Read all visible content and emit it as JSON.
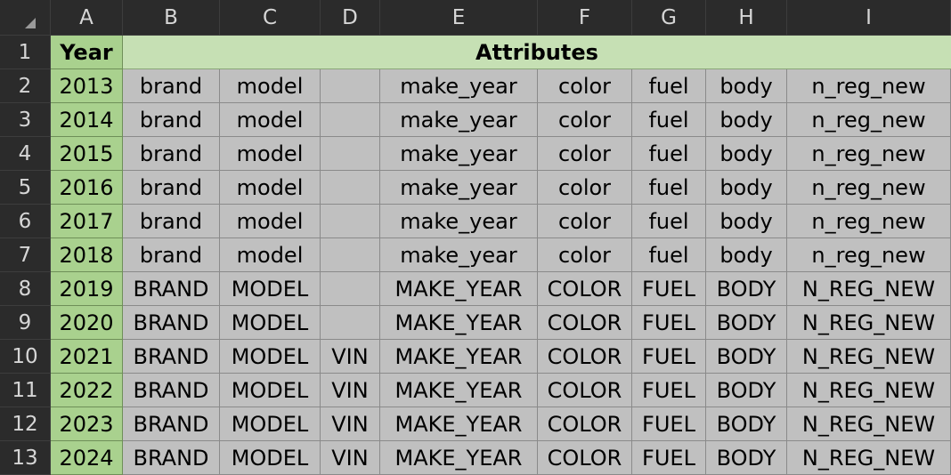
{
  "corner_icon": "select-all-triangle-icon",
  "columns": [
    "A",
    "B",
    "C",
    "D",
    "E",
    "F",
    "G",
    "H",
    "I"
  ],
  "row_numbers": [
    "1",
    "2",
    "3",
    "4",
    "5",
    "6",
    "7",
    "8",
    "9",
    "10",
    "11",
    "12",
    "13"
  ],
  "header": {
    "year": "Year",
    "attributes": "Attributes"
  },
  "rows": [
    {
      "year": "2013",
      "values": [
        "brand",
        "model",
        "",
        "make_year",
        "color",
        "fuel",
        "body",
        "n_reg_new"
      ]
    },
    {
      "year": "2014",
      "values": [
        "brand",
        "model",
        "",
        "make_year",
        "color",
        "fuel",
        "body",
        "n_reg_new"
      ]
    },
    {
      "year": "2015",
      "values": [
        "brand",
        "model",
        "",
        "make_year",
        "color",
        "fuel",
        "body",
        "n_reg_new"
      ]
    },
    {
      "year": "2016",
      "values": [
        "brand",
        "model",
        "",
        "make_year",
        "color",
        "fuel",
        "body",
        "n_reg_new"
      ]
    },
    {
      "year": "2017",
      "values": [
        "brand",
        "model",
        "",
        "make_year",
        "color",
        "fuel",
        "body",
        "n_reg_new"
      ]
    },
    {
      "year": "2018",
      "values": [
        "brand",
        "model",
        "",
        "make_year",
        "color",
        "fuel",
        "body",
        "n_reg_new"
      ]
    },
    {
      "year": "2019",
      "values": [
        "BRAND",
        "MODEL",
        "",
        "MAKE_YEAR",
        "COLOR",
        "FUEL",
        "BODY",
        "N_REG_NEW"
      ]
    },
    {
      "year": "2020",
      "values": [
        "BRAND",
        "MODEL",
        "",
        "MAKE_YEAR",
        "COLOR",
        "FUEL",
        "BODY",
        "N_REG_NEW"
      ]
    },
    {
      "year": "2021",
      "values": [
        "BRAND",
        "MODEL",
        "VIN",
        "MAKE_YEAR",
        "COLOR",
        "FUEL",
        "BODY",
        "N_REG_NEW"
      ]
    },
    {
      "year": "2022",
      "values": [
        "BRAND",
        "MODEL",
        "VIN",
        "MAKE_YEAR",
        "COLOR",
        "FUEL",
        "BODY",
        "N_REG_NEW"
      ]
    },
    {
      "year": "2023",
      "values": [
        "BRAND",
        "MODEL",
        "VIN",
        "MAKE_YEAR",
        "COLOR",
        "FUEL",
        "BODY",
        "N_REG_NEW"
      ]
    },
    {
      "year": "2024",
      "values": [
        "BRAND",
        "MODEL",
        "VIN",
        "MAKE_YEAR",
        "COLOR",
        "FUEL",
        "BODY",
        "N_REG_NEW"
      ]
    }
  ],
  "colors": {
    "year_fill": "#a9d18e",
    "attributes_header_fill": "#c6e0b4",
    "cell_fill": "#c0c0c0",
    "header_bg": "#2b2b2b"
  }
}
